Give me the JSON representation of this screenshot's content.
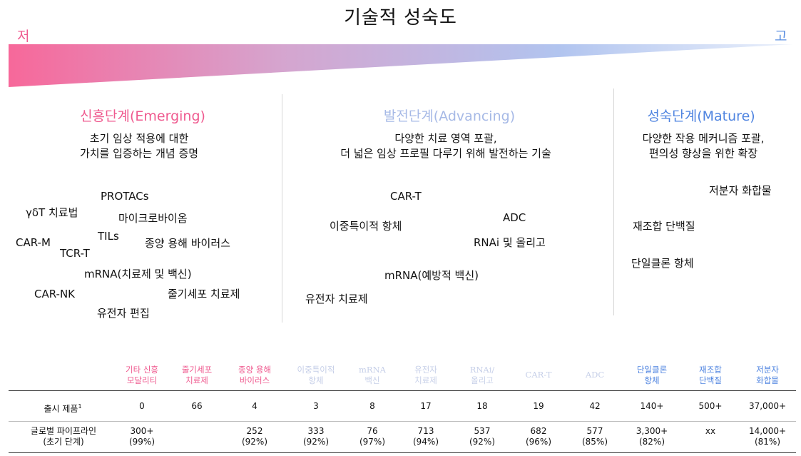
{
  "title": "기술적 성숙도",
  "scale": {
    "low": "저",
    "high": "고"
  },
  "colors": {
    "emerging": "#ef5a8f",
    "advancing": "#a6b9e6",
    "mature": "#4f84e0"
  },
  "stages": [
    {
      "title": "신흥단계(Emerging)",
      "desc1": "초기 임상 적용에 대한",
      "desc2": "가치를 입증하는 개념 증명",
      "techs": [
        "PROTACs",
        "γδT 치료법",
        "마이크로바이옴",
        "CAR-M",
        "TILs",
        "종양 용해 바이러스",
        "TCR-T",
        "mRNA(치료제 및 백신)",
        "CAR-NK",
        "줄기세포 치료제",
        "유전자 편집"
      ]
    },
    {
      "title": "발전단계(Advancing)",
      "desc1": "다양한 치료 영역 포괄,",
      "desc2": "더 넓은 임상 프로필 다루기 위해 발전하는 기술",
      "techs": [
        "CAR-T",
        "ADC",
        "이중특이적 항체",
        "RNAi 및 올리고",
        "mRNA(예방적 백신)",
        "유전자 치료제"
      ]
    },
    {
      "title": "성숙단계(Mature)",
      "desc1": "다양한 작용 메커니즘 포괄,",
      "desc2": "편의성 향상을 위한 확장",
      "techs": [
        "저분자 화합물",
        "재조합 단백질",
        "단일클론 항체"
      ]
    }
  ],
  "table": {
    "columns": [
      {
        "l1": "기타 신흥",
        "l2": "모달리티"
      },
      {
        "l1": "줄기세포",
        "l2": "치료제"
      },
      {
        "l1": "종양 용해",
        "l2": "바이러스"
      },
      {
        "l1": "이중특이적",
        "l2": "항체"
      },
      {
        "l1": "mRNA",
        "l2": "백신"
      },
      {
        "l1": "유전자",
        "l2": "치료제"
      },
      {
        "l1": "RNAi/",
        "l2": "올리고"
      },
      {
        "l1": "CAR-T",
        "l2": ""
      },
      {
        "l1": "ADC",
        "l2": ""
      },
      {
        "l1": "단일클론",
        "l2": "항체"
      },
      {
        "l1": "재조합",
        "l2": "단백질"
      },
      {
        "l1": "저분자",
        "l2": "화합물"
      }
    ],
    "row_launched": {
      "label": "출시 제품",
      "footnote": "1",
      "values": [
        "0",
        "66",
        "4",
        "3",
        "8",
        "17",
        "18",
        "19",
        "42",
        "140+",
        "500+",
        "37,000+"
      ]
    },
    "row_pipeline": {
      "label1": "글로벌 파이프라인",
      "label2": "(초기 단계)",
      "values": [
        {
          "v": "300+",
          "p": "(99%)"
        },
        {
          "v": "",
          "p": ""
        },
        {
          "v": "252",
          "p": "(92%)"
        },
        {
          "v": "333",
          "p": "(92%)"
        },
        {
          "v": "76",
          "p": "(97%)"
        },
        {
          "v": "713",
          "p": "(94%)"
        },
        {
          "v": "537",
          "p": "(92%)"
        },
        {
          "v": "682",
          "p": "(96%)"
        },
        {
          "v": "577",
          "p": "(85%)"
        },
        {
          "v": "3,300+",
          "p": "(82%)"
        },
        {
          "v": "xx",
          "p": ""
        },
        {
          "v": "14,000+",
          "p": "(81%)"
        }
      ]
    }
  }
}
